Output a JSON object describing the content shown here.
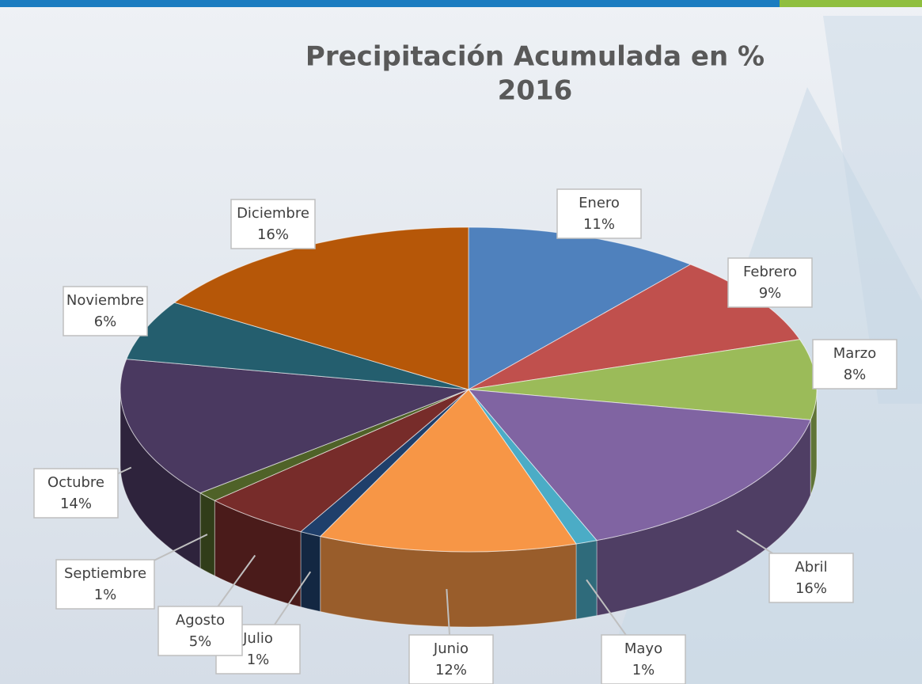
{
  "chart_data": {
    "type": "pie3d",
    "title": "Precipitación Acumulada en %",
    "subtitle": "2016",
    "categories": [
      "Enero",
      "Febrero",
      "Marzo",
      "Abril",
      "Mayo",
      "Junio",
      "Julio",
      "Agosto",
      "Septiembre",
      "Octubre",
      "Noviembre",
      "Diciembre"
    ],
    "values": [
      11,
      9,
      8,
      16,
      1,
      12,
      1,
      5,
      1,
      14,
      6,
      16
    ],
    "value_labels": [
      "11%",
      "9%",
      "8%",
      "16%",
      "1%",
      "12%",
      "1%",
      "5%",
      "1%",
      "14%",
      "6%",
      "16%"
    ],
    "colors": [
      "#4f81bd",
      "#c0504d",
      "#9bbb59",
      "#8064a2",
      "#4bacc6",
      "#f79646",
      "#1f3f6b",
      "#772c2a",
      "#4f6228",
      "#4a3960",
      "#245e6e",
      "#b65708"
    ]
  }
}
